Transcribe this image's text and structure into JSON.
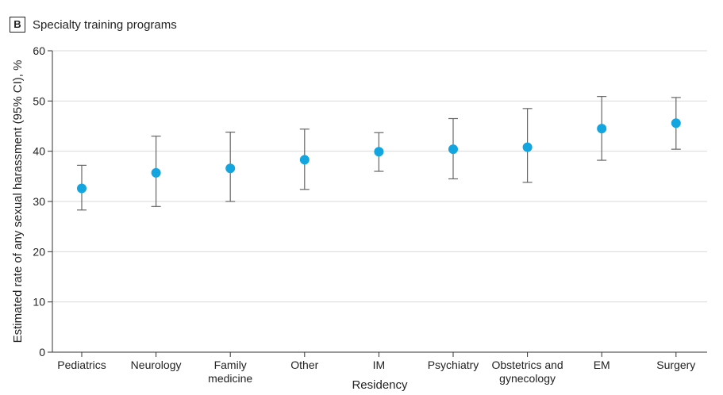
{
  "panel": {
    "letter": "B",
    "title": "Specialty training programs"
  },
  "colors": {
    "point": "#12A5E0",
    "errorbar": "#666666",
    "grid": "#d9d9d9",
    "axis": "#333333",
    "text": "#222222"
  },
  "chart_data": {
    "type": "scatter",
    "subtype": "point-with-error-bars",
    "title": "Specialty training programs",
    "xlabel": "Residency",
    "ylabel": "Estimated rate of any sexual harassment (95% CI), %",
    "ylim": [
      0,
      60
    ],
    "yticks": [
      0,
      10,
      20,
      30,
      40,
      50,
      60
    ],
    "grid": "horizontal",
    "categories": [
      [
        "Pediatrics"
      ],
      [
        "Neurology"
      ],
      [
        "Family",
        "medicine"
      ],
      [
        "Other"
      ],
      [
        "IM"
      ],
      [
        "Psychiatry"
      ],
      [
        "Obstetrics and",
        "gynecology"
      ],
      [
        "EM"
      ],
      [
        "Surgery"
      ]
    ],
    "values": [
      32.6,
      35.7,
      36.6,
      38.3,
      39.9,
      40.4,
      40.8,
      44.5,
      45.6
    ],
    "ci_lower": [
      28.3,
      29.0,
      30.0,
      32.4,
      36.0,
      34.5,
      33.8,
      38.2,
      40.4
    ],
    "ci_upper": [
      37.2,
      43.0,
      43.8,
      44.4,
      43.7,
      46.5,
      48.5,
      50.9,
      50.7
    ]
  }
}
